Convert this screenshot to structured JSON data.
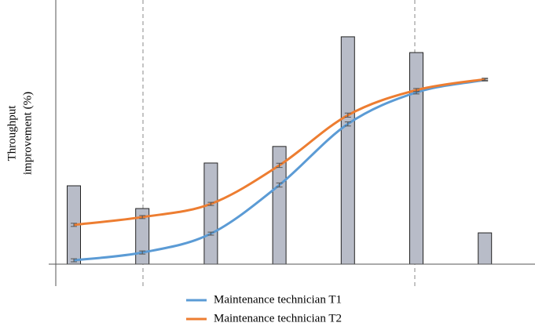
{
  "chart_data": {
    "type": "bar-line",
    "ylabel": [
      "Throughput",
      "improvement (%)"
    ],
    "categories": [
      null,
      null,
      null,
      null,
      null,
      null,
      null
    ],
    "ylim": [
      0,
      100
    ],
    "bars": {
      "color": "#b8bcc8",
      "values": [
        30.3,
        21.5,
        39.1,
        45.5,
        87.9,
        81.8,
        12.1
      ]
    },
    "series": [
      {
        "name": "Maintenance technician T1",
        "color": "#5b9bd5",
        "values": [
          1.5,
          4.5,
          11.8,
          30.6,
          54.2,
          66.4,
          71.2
        ],
        "errors": [
          0.6,
          0.6,
          0.6,
          0.8,
          0.8,
          0.6,
          0.4
        ]
      },
      {
        "name": "Maintenance technician T2",
        "color": "#ed7d31",
        "values": [
          15.2,
          18.2,
          23.3,
          38.2,
          57.6,
          67.3,
          71.5
        ],
        "errors": [
          0.6,
          0.6,
          0.6,
          0.8,
          0.8,
          0.6,
          0.4
        ]
      }
    ],
    "legend": "bottom"
  }
}
